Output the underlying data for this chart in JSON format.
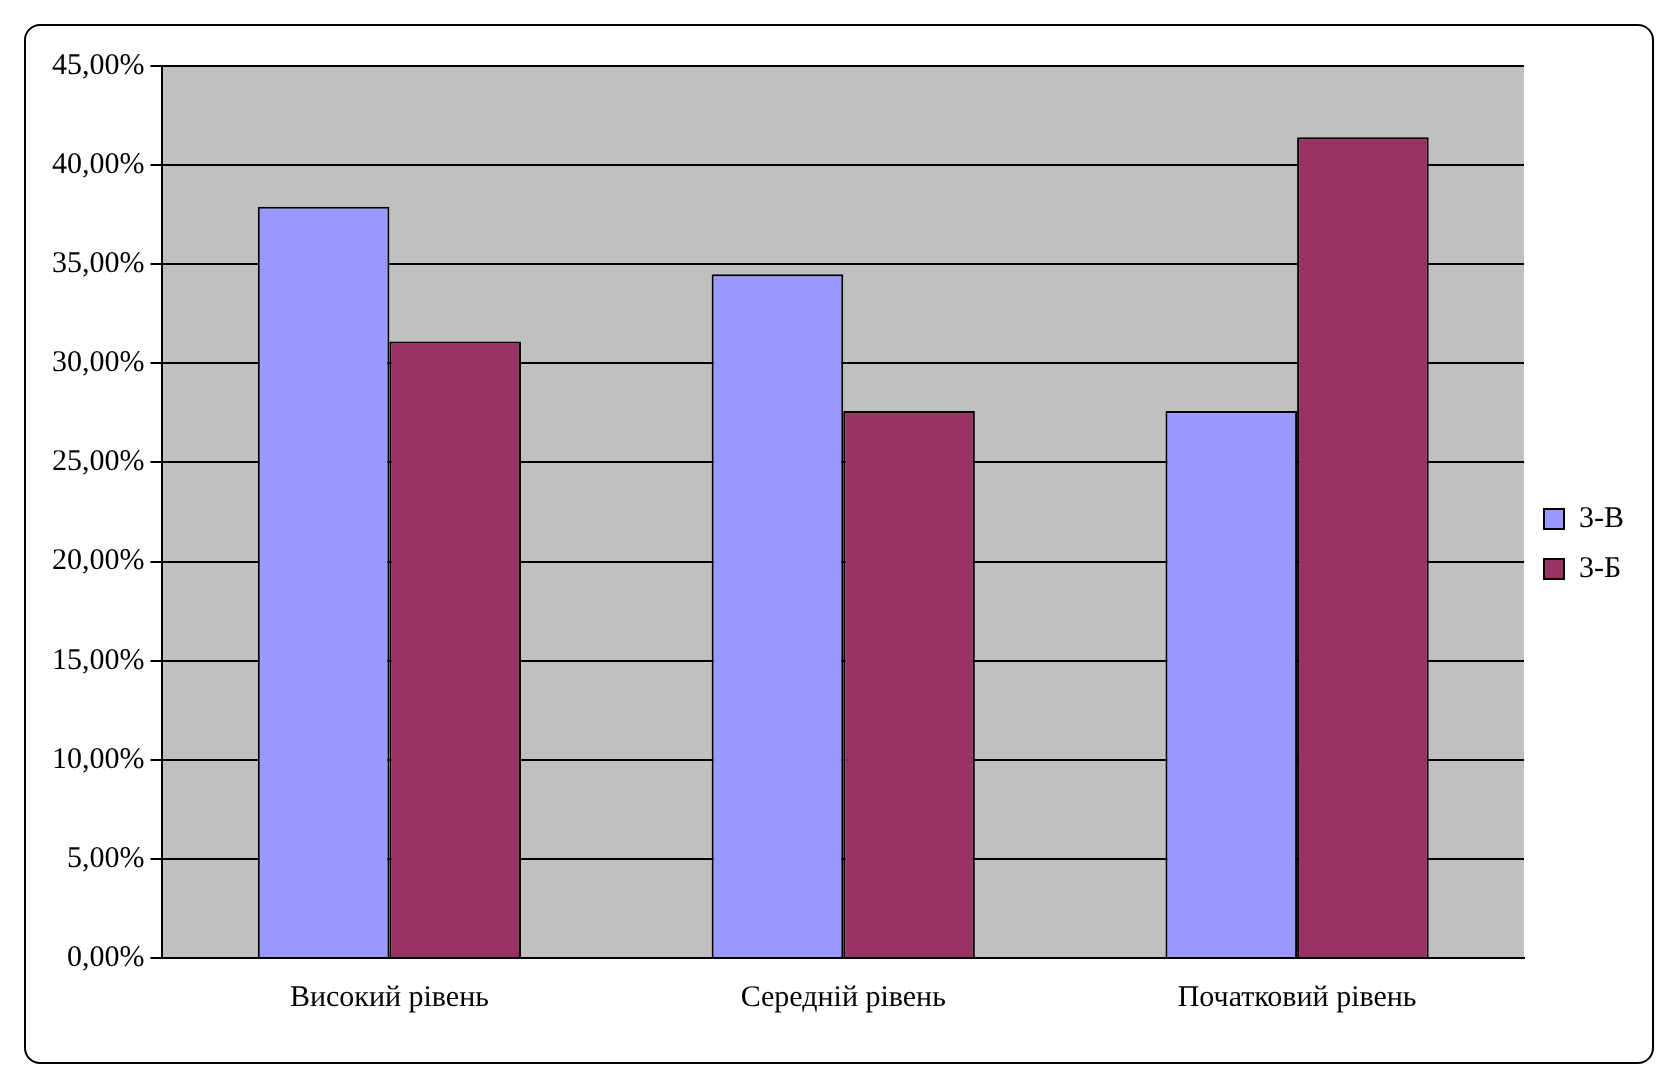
{
  "chart_data": {
    "type": "bar",
    "categories": [
      "Високий рівень",
      "Середній рівень",
      "Початковий рівень"
    ],
    "series": [
      {
        "name": "3-В",
        "color": "#9999ff",
        "values": [
          37.9,
          34.5,
          27.6
        ]
      },
      {
        "name": "3-Б",
        "color": "#993366",
        "values": [
          31.1,
          27.6,
          41.4
        ]
      }
    ],
    "ylim": [
      0,
      45
    ],
    "yticks": [
      {
        "value": 0,
        "label": "0,00%"
      },
      {
        "value": 5,
        "label": "5,00%"
      },
      {
        "value": 10,
        "label": "10,00%"
      },
      {
        "value": 15,
        "label": "15,00%"
      },
      {
        "value": 20,
        "label": "20,00%"
      },
      {
        "value": 25,
        "label": "25,00%"
      },
      {
        "value": 30,
        "label": "30,00%"
      },
      {
        "value": 35,
        "label": "35,00%"
      },
      {
        "value": 40,
        "label": "40,00%"
      },
      {
        "value": 45,
        "label": "45,00%"
      }
    ],
    "grid": "y",
    "legend": "right"
  }
}
